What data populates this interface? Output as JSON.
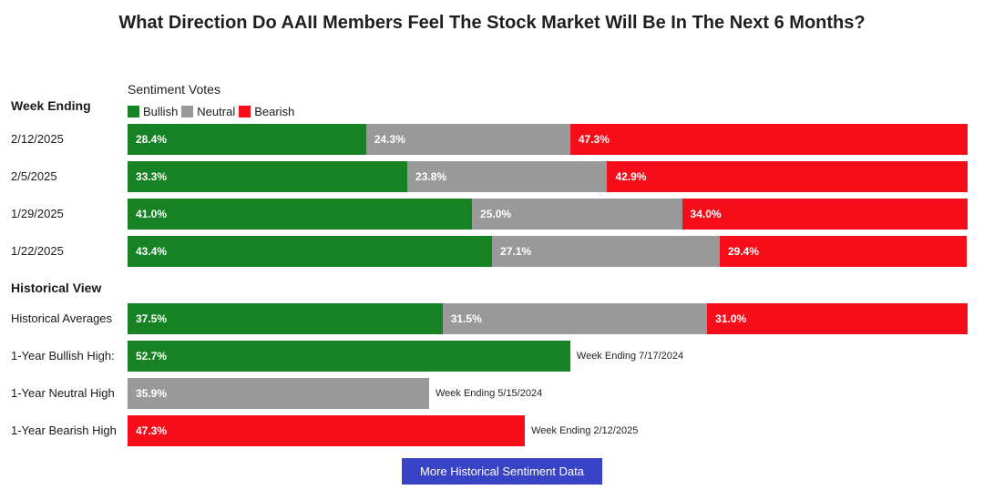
{
  "title": "What Direction Do AAII Members Feel The Stock Market Will Be In The Next 6 Months?",
  "legend_title": "Sentiment Votes",
  "week_ending_header": "Week Ending",
  "historical_header": "Historical View",
  "legend": [
    {
      "label": "Bullish",
      "color": "#168224"
    },
    {
      "label": "Neutral",
      "color": "#999999"
    },
    {
      "label": "Bearish",
      "color": "#f70d1a"
    }
  ],
  "button_label": "More Historical Sentiment Data",
  "chart_data": {
    "type": "bar",
    "orientation": "horizontal",
    "stacked": true,
    "title": "What Direction Do AAII Members Feel The Stock Market Will Be In The Next 6 Months?",
    "legend_placement": "top-left",
    "weekly": [
      {
        "label": "2/12/2025",
        "bullish": 28.4,
        "neutral": 24.3,
        "bearish": 47.3
      },
      {
        "label": "2/5/2025",
        "bullish": 33.3,
        "neutral": 23.8,
        "bearish": 42.9
      },
      {
        "label": "1/29/2025",
        "bullish": 41.0,
        "neutral": 25.0,
        "bearish": 34.0
      },
      {
        "label": "1/22/2025",
        "bullish": 43.4,
        "neutral": 27.1,
        "bearish": 29.4
      }
    ],
    "historical_average": {
      "label": "Historical Averages",
      "bullish": 37.5,
      "neutral": 31.5,
      "bearish": 31.0
    },
    "highs": [
      {
        "label": "1-Year Bullish High:",
        "type": "bullish",
        "value": 52.7,
        "note": "Week Ending 7/17/2024"
      },
      {
        "label": "1-Year Neutral High",
        "type": "neutral",
        "value": 35.9,
        "note": "Week Ending 5/15/2024"
      },
      {
        "label": "1-Year Bearish High",
        "type": "bearish",
        "value": 47.3,
        "note": "Week Ending 2/12/2025"
      }
    ]
  }
}
